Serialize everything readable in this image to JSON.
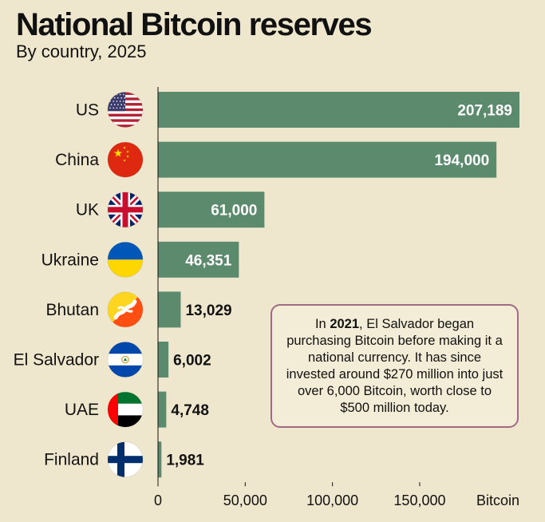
{
  "title": "National Bitcoin reserves",
  "subtitle": "By country, 2025",
  "note": {
    "prefix": "In ",
    "year": "2021",
    "text": ", El Salvador began purchasing Bitcoin before making it a national currency. It has since invested around $270 million into just over 6,000 Bitcoin, worth close to $500 million today."
  },
  "colors": {
    "bar": "#5b8a6d",
    "background": "#efe7cd",
    "note_border": "#a06a86"
  },
  "chart_data": {
    "type": "bar",
    "orientation": "horizontal",
    "categories": [
      "US",
      "China",
      "UK",
      "Ukraine",
      "Bhutan",
      "El Salvador",
      "UAE",
      "Finland"
    ],
    "values": [
      207189,
      194000,
      61000,
      46351,
      13029,
      6002,
      4748,
      1981
    ],
    "value_labels": [
      "207,189",
      "194,000",
      "61,000",
      "46,351",
      "13,029",
      "6,002",
      "4,748",
      "1,981"
    ],
    "flags": [
      "us-flag-icon",
      "china-flag-icon",
      "uk-flag-icon",
      "ukraine-flag-icon",
      "bhutan-flag-icon",
      "el-salvador-flag-icon",
      "uae-flag-icon",
      "finland-flag-icon"
    ],
    "xticks": [
      0,
      50000,
      100000,
      150000
    ],
    "xtick_labels": [
      "0",
      "50,000",
      "100,000",
      "150,000"
    ],
    "xlabel": "Bitcoin",
    "xlim": [
      0,
      207189
    ],
    "grid": false
  }
}
